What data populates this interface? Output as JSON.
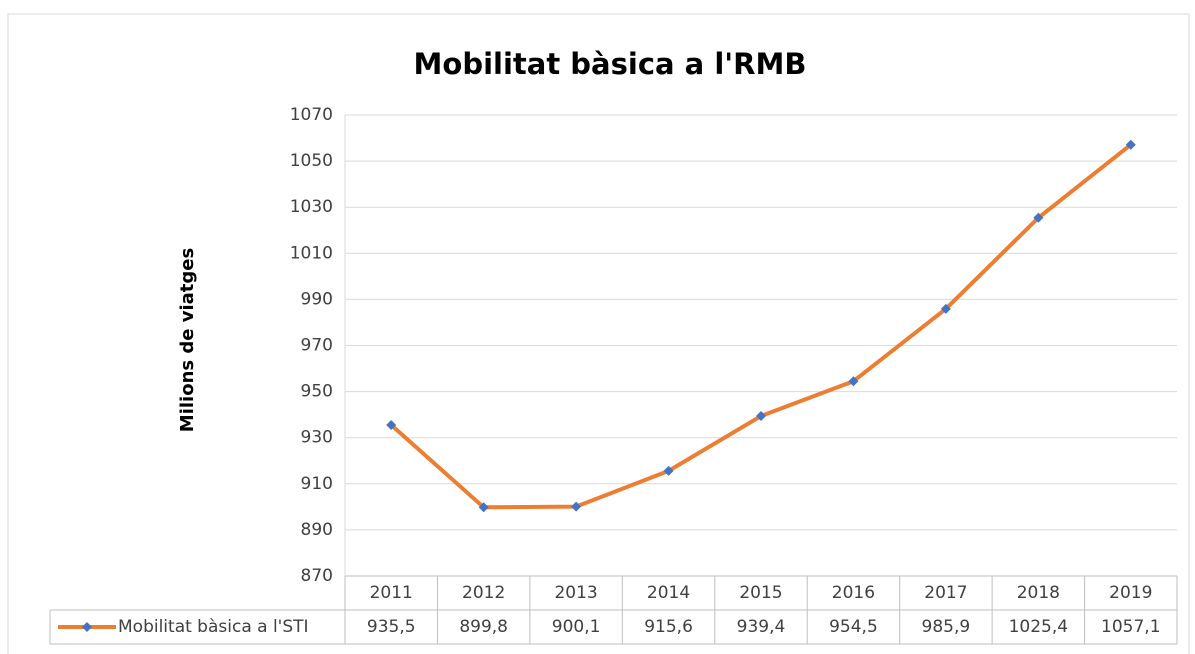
{
  "chart_data": {
    "type": "line",
    "title": "Mobilitat bàsica a l'RMB",
    "y_label": "Milions de viatges",
    "categories": [
      "2011",
      "2012",
      "2013",
      "2014",
      "2015",
      "2016",
      "2017",
      "2018",
      "2019"
    ],
    "series": [
      {
        "name": "Mobilitat bàsica a l'STI",
        "color": "#ed7d31",
        "marker_color": "#4472c4",
        "values": [
          935.5,
          899.8,
          900.1,
          915.6,
          939.4,
          954.5,
          985.9,
          1025.4,
          1057.1
        ],
        "value_labels": [
          "935,5",
          "899,8",
          "900,1",
          "915,6",
          "939,4",
          "954,5",
          "985,9",
          "1025,4",
          "1057,1"
        ]
      }
    ],
    "ylim": [
      870,
      1070
    ],
    "yticks": [
      870,
      890,
      910,
      930,
      950,
      970,
      990,
      1010,
      1030,
      1050,
      1070
    ],
    "grid": true,
    "data_table": true
  }
}
